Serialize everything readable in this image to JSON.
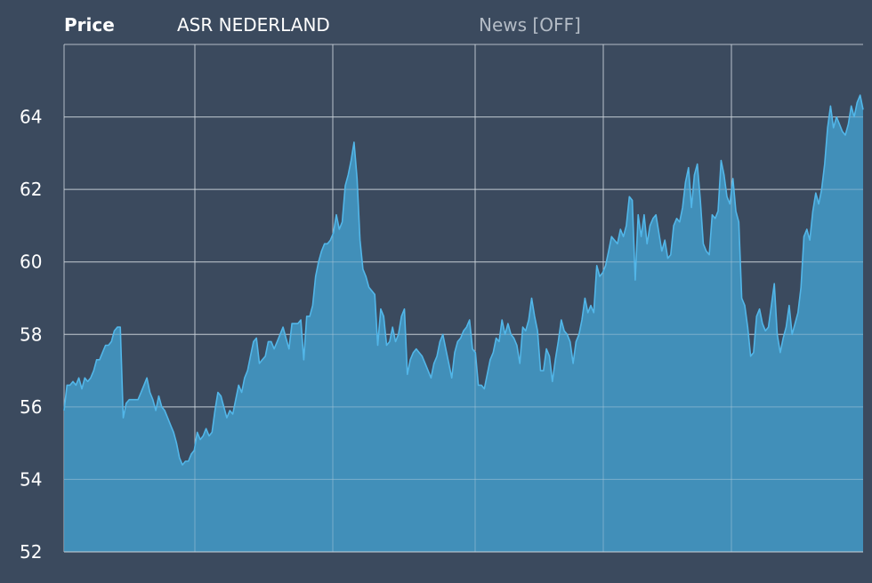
{
  "header": {
    "tab_label": "Price",
    "instrument": "ASR NEDERLAND",
    "news_toggle": "News [OFF]"
  },
  "colors": {
    "background": "#3b4a5e",
    "area_fill": "#4397c3",
    "line": "#52b6e8",
    "grid": "#c9d0d8"
  },
  "chart_data": {
    "type": "area",
    "title": "",
    "xlabel": "",
    "ylabel": "",
    "ylim": [
      52,
      66
    ],
    "yticks": [
      52,
      54,
      56,
      58,
      60,
      62,
      64
    ],
    "grid": true,
    "series": [
      {
        "values": [
          55.9,
          56.6,
          56.6,
          56.7,
          56.6,
          56.8,
          56.5,
          56.8,
          56.7,
          56.8,
          57.0,
          57.3,
          57.3,
          57.5,
          57.7,
          57.7,
          57.8,
          58.1,
          58.2,
          58.2,
          55.7,
          56.1,
          56.2,
          56.2,
          56.2,
          56.2,
          56.4,
          56.6,
          56.8,
          56.4,
          56.2,
          55.9,
          56.3,
          56.0,
          55.9,
          55.7,
          55.5,
          55.3,
          55.0,
          54.6,
          54.4,
          54.5,
          54.5,
          54.7,
          54.8,
          55.3,
          55.1,
          55.2,
          55.4,
          55.2,
          55.3,
          55.9,
          56.4,
          56.3,
          56.0,
          55.7,
          55.9,
          55.8,
          56.2,
          56.6,
          56.4,
          56.8,
          57.0,
          57.4,
          57.8,
          57.9,
          57.2,
          57.3,
          57.4,
          57.8,
          57.8,
          57.6,
          57.8,
          58.0,
          58.2,
          57.9,
          57.6,
          58.3,
          58.3,
          58.3,
          58.4,
          57.3,
          58.5,
          58.5,
          58.8,
          59.6,
          60.0,
          60.3,
          60.5,
          60.5,
          60.6,
          60.8,
          61.3,
          60.9,
          61.1,
          62.1,
          62.4,
          62.8,
          63.3,
          62.3,
          60.6,
          59.8,
          59.6,
          59.3,
          59.2,
          59.1,
          57.7,
          58.7,
          58.5,
          57.7,
          57.8,
          58.2,
          57.8,
          58.0,
          58.5,
          58.7,
          56.9,
          57.3,
          57.5,
          57.6,
          57.5,
          57.4,
          57.2,
          57.0,
          56.8,
          57.2,
          57.4,
          57.8,
          58.0,
          57.6,
          57.2,
          56.8,
          57.5,
          57.8,
          57.9,
          58.1,
          58.2,
          58.4,
          57.6,
          57.5,
          56.6,
          56.6,
          56.5,
          56.9,
          57.3,
          57.5,
          57.9,
          57.8,
          58.4,
          58.0,
          58.3,
          58.0,
          57.9,
          57.7,
          57.2,
          58.2,
          58.1,
          58.4,
          59.0,
          58.5,
          58.1,
          57.0,
          57.0,
          57.6,
          57.4,
          56.7,
          57.3,
          57.8,
          58.4,
          58.1,
          58.0,
          57.8,
          57.2,
          57.8,
          58.0,
          58.4,
          59.0,
          58.6,
          58.8,
          58.6,
          59.9,
          59.6,
          59.7,
          59.9,
          60.3,
          60.7,
          60.6,
          60.5,
          60.9,
          60.7,
          61.0,
          61.8,
          61.7,
          59.5,
          61.3,
          60.7,
          61.3,
          60.5,
          61.0,
          61.2,
          61.3,
          60.8,
          60.3,
          60.6,
          60.1,
          60.2,
          61.0,
          61.2,
          61.1,
          61.5,
          62.2,
          62.6,
          61.5,
          62.4,
          62.7,
          61.7,
          60.5,
          60.3,
          60.2,
          61.3,
          61.2,
          61.4,
          62.8,
          62.4,
          61.8,
          61.6,
          62.3,
          61.4,
          61.1,
          59.0,
          58.8,
          58.2,
          57.4,
          57.5,
          58.5,
          58.7,
          58.3,
          58.1,
          58.2,
          58.8,
          59.4,
          58.0,
          57.5,
          57.9,
          58.2,
          58.8,
          58.0,
          58.3,
          58.6,
          59.3,
          60.7,
          60.9,
          60.6,
          61.4,
          61.9,
          61.6,
          62.0,
          62.7,
          63.7,
          64.3,
          63.7,
          64.0,
          63.8,
          63.6,
          63.5,
          63.8,
          64.3,
          64.0,
          64.4,
          64.6,
          64.2
        ]
      }
    ]
  }
}
